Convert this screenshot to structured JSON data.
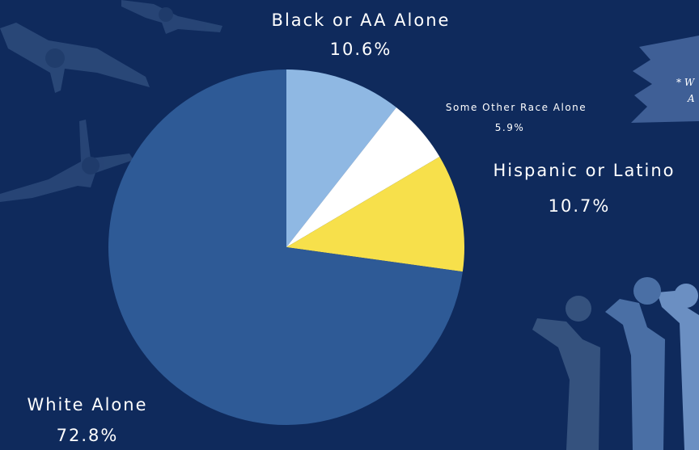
{
  "chart_data": {
    "type": "pie",
    "title": "",
    "start_angle_deg": 0,
    "direction": "clockwise",
    "slices": [
      {
        "label": "Black or AA Alone",
        "value": 10.6,
        "value_label": "10.6%",
        "color": "#8fb8e3"
      },
      {
        "label": "Some Other Race Alone",
        "value": 5.9,
        "value_label": "5.9%",
        "color": "#ffffff"
      },
      {
        "label": "Hispanic or Latino",
        "value": 10.7,
        "value_label": "10.7%",
        "color": "#f7e04b"
      },
      {
        "label": "White Alone",
        "value": 72.8,
        "value_label": "72.8%",
        "color": "#2e5a96"
      }
    ]
  },
  "note": {
    "line1": "* W",
    "line2": "A"
  },
  "colors": {
    "background": "#0f2a5c",
    "decor_dark": "#35527e",
    "decor_mid": "#4a6fa5",
    "decor_light": "#6b8fc2"
  }
}
